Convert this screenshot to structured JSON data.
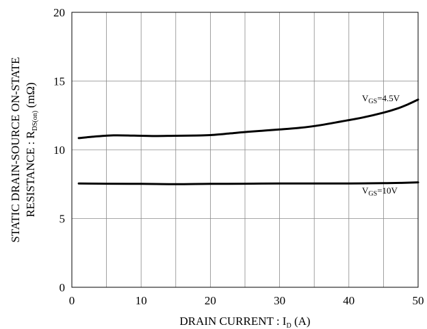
{
  "chart_data": {
    "type": "line",
    "xlabel": "DRAIN CURRENT : I",
    "xlabel_sub": "D",
    "xlabel_unit": " (A)",
    "ylabel_line1": "STATIC DRAIN-SOURCE ON-STATE",
    "ylabel_line2": "RESISTANCE : R",
    "ylabel_line2_sub": "DS(on)",
    "ylabel_line2_unit": " (mΩ)",
    "xlim": [
      0,
      50
    ],
    "ylim": [
      0,
      20
    ],
    "x_ticks": [
      0,
      10,
      20,
      30,
      40,
      50
    ],
    "y_ticks": [
      0,
      5,
      10,
      15,
      20
    ],
    "x_tick_labels": [
      "0",
      "10",
      "20",
      "30",
      "40",
      "50"
    ],
    "y_tick_labels": [
      "0",
      "5",
      "10",
      "15",
      "20"
    ],
    "grid": true,
    "series": [
      {
        "label_main": "V",
        "label_sub": "GS",
        "label_rest": "=4.5V",
        "color": "#000000",
        "points": [
          [
            1,
            10.85
          ],
          [
            3,
            10.95
          ],
          [
            6,
            11.05
          ],
          [
            9,
            11.03
          ],
          [
            12,
            11.0
          ],
          [
            15,
            11.02
          ],
          [
            18,
            11.04
          ],
          [
            20,
            11.07
          ],
          [
            23,
            11.2
          ],
          [
            26,
            11.33
          ],
          [
            30,
            11.48
          ],
          [
            33,
            11.6
          ],
          [
            36,
            11.8
          ],
          [
            39,
            12.07
          ],
          [
            42,
            12.35
          ],
          [
            45,
            12.7
          ],
          [
            47,
            13.0
          ],
          [
            48.5,
            13.3
          ],
          [
            50,
            13.65
          ]
        ]
      },
      {
        "label_main": "V",
        "label_sub": "GS",
        "label_rest": "=10V",
        "color": "#000000",
        "points": [
          [
            1,
            7.55
          ],
          [
            5,
            7.53
          ],
          [
            10,
            7.52
          ],
          [
            15,
            7.5
          ],
          [
            20,
            7.52
          ],
          [
            25,
            7.53
          ],
          [
            30,
            7.55
          ],
          [
            35,
            7.55
          ],
          [
            40,
            7.55
          ],
          [
            45,
            7.57
          ],
          [
            48,
            7.6
          ],
          [
            50,
            7.63
          ]
        ]
      }
    ]
  }
}
